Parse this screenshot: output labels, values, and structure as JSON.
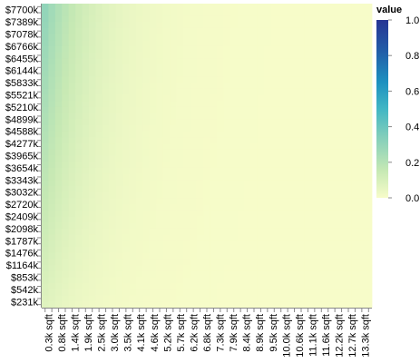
{
  "chart_data": {
    "type": "heatmap",
    "title": "",
    "xlabel": "",
    "ylabel": "",
    "x_categories": [
      "0.3k sqft",
      "0.8k sqft",
      "1.4k sqft",
      "1.9k sqft",
      "2.5k sqft",
      "3.0k sqft",
      "3.5k sqft",
      "4.1k sqft",
      "4.6k sqft",
      "5.2k sqft",
      "5.7k sqft",
      "6.2k sqft",
      "6.8k sqft",
      "7.3k sqft",
      "7.9k sqft",
      "8.4k sqft",
      "8.9k sqft",
      "9.5k sqft",
      "10.0k sqft",
      "10.6k sqft",
      "11.1k sqft",
      "11.6k sqft",
      "12.2k sqft",
      "12.7k sqft",
      "13.3k sqft"
    ],
    "y_categories": [
      "$7700k",
      "$7389k",
      "$7078k",
      "$6766k",
      "$6455k",
      "$6144k",
      "$5833k",
      "$5521k",
      "$5210k",
      "$4899k",
      "$4588k",
      "$4277k",
      "$3965k",
      "$3654k",
      "$3343k",
      "$3032k",
      "$2720k",
      "$2409k",
      "$2098k",
      "$1787k",
      "$1476k",
      "$1164k",
      "$853k",
      "$542k",
      "$231k"
    ],
    "x_tick_count": 49,
    "y_tick_count": 50,
    "value_description": "Value peaks (~0.30) at the smallest sqft and highest price, decaying smoothly toward larger sqft and lower price (~0.0).",
    "values_anchor": {
      "max": 0.3,
      "min": 0.0
    },
    "legend": {
      "title": "value",
      "position": "right",
      "domain": [
        0.0,
        1.0
      ],
      "tick_labels": [
        "1.0",
        "0.8",
        "0.6",
        "0.4",
        "0.2",
        "0.0"
      ],
      "colors": [
        "#f7fcc9",
        "#c7e9b4",
        "#7fcdbb",
        "#41b6c4",
        "#1d91c0",
        "#225ea8",
        "#253494",
        "#1a237e"
      ]
    },
    "grid": false
  }
}
